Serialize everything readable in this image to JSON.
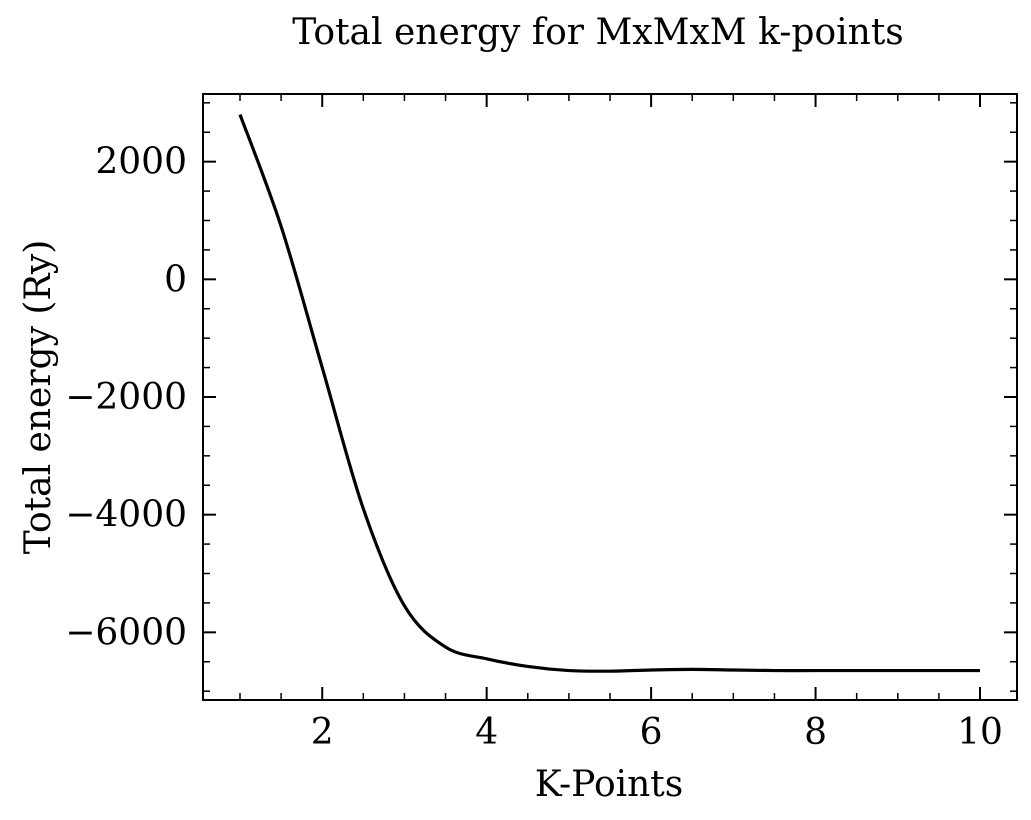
{
  "chart_data": {
    "type": "line",
    "title": "Total energy for MxMxM k-points",
    "xlabel": "K-Points",
    "ylabel": "Total energy (Ry)",
    "xlim": [
      0.55,
      10.45
    ],
    "ylim": [
      -7150,
      3150
    ],
    "xticks": [
      2,
      4,
      6,
      8,
      10
    ],
    "xtick_labels": [
      "2",
      "4",
      "6",
      "8",
      "10"
    ],
    "yticks": [
      -6000,
      -4000,
      -2000,
      0,
      2000
    ],
    "ytick_labels": [
      "−6000",
      "−4000",
      "−2000",
      "0",
      "2000"
    ],
    "x_minor_step": 0.5,
    "y_minor_step": 500,
    "grid": false,
    "line_color": "#000000",
    "series": [
      {
        "x": [
          1,
          1.5,
          2,
          2.5,
          3,
          3.5,
          4,
          4.5,
          5,
          5.5,
          6,
          6.5,
          7,
          7.5,
          8,
          8.5,
          9,
          9.5,
          10
        ],
        "values": [
          2800,
          900,
          -1500,
          -3900,
          -5550,
          -6250,
          -6450,
          -6580,
          -6650,
          -6660,
          -6640,
          -6630,
          -6640,
          -6650,
          -6650,
          -6650,
          -6650,
          -6650,
          -6650
        ]
      }
    ]
  }
}
